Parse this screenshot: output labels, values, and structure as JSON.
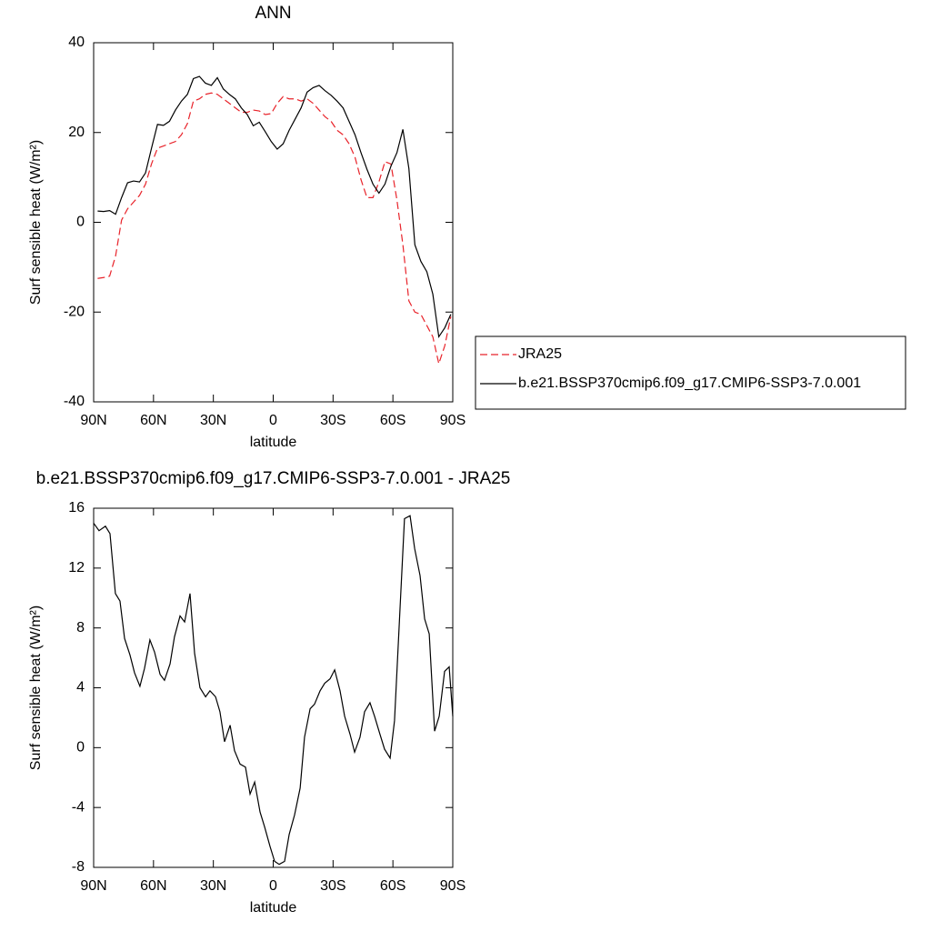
{
  "chart_data": [
    {
      "type": "line",
      "title": "ANN",
      "xlabel": "latitude",
      "ylabel": "Surf sensible heat (W/m²)",
      "x": [
        88,
        85,
        82,
        79,
        76,
        73,
        70,
        67,
        64,
        61,
        58,
        55,
        52,
        49,
        46,
        43,
        40,
        37,
        34,
        31,
        28,
        25,
        22,
        19,
        16,
        13,
        10,
        7,
        4,
        1,
        -2,
        -5,
        -8,
        -11,
        -14,
        -17,
        -20,
        -23,
        -26,
        -29,
        -32,
        -35,
        -38,
        -41,
        -44,
        -47,
        -50,
        -53,
        -56,
        -59,
        -62,
        -65,
        -68,
        -71,
        -74,
        -77,
        -80,
        -83,
        -86,
        -89
      ],
      "series": [
        {
          "name": "JRA25",
          "color": "#e8232a",
          "line_style": "dashed",
          "values": [
            -12.5,
            -12.3,
            -12,
            -7.5,
            0.5,
            3,
            4.5,
            6,
            8.5,
            13,
            16.5,
            17,
            17.5,
            18,
            19.5,
            22,
            27,
            27.5,
            28.5,
            28.8,
            28.5,
            27.5,
            26.5,
            25.5,
            24.5,
            24.5,
            25,
            24.8,
            24,
            24.2,
            26.5,
            28,
            27.5,
            27.5,
            27,
            27.5,
            26.5,
            25,
            23.5,
            22.5,
            20.5,
            19.5,
            17.5,
            14.5,
            9.5,
            5.5,
            5.5,
            9,
            13.5,
            13,
            5,
            -5,
            -17.5,
            -20,
            -20.5,
            -23,
            -25.5,
            -31.5,
            -27.5,
            -21
          ]
        },
        {
          "name": "b.e21.BSSP370cmip6.f09_g17.CMIP6-SSP3-7.0.001",
          "color": "#000000",
          "line_style": "solid",
          "values": [
            2.5,
            2.4,
            2.6,
            1.8,
            5.5,
            8.8,
            9.2,
            9,
            11,
            16.5,
            21.8,
            21.6,
            22.5,
            25,
            27,
            28.5,
            32,
            32.5,
            31,
            30.5,
            32.2,
            29.7,
            28.5,
            27.5,
            25.5,
            24,
            21.5,
            22.3,
            20.2,
            18,
            16.3,
            17.5,
            20.5,
            23,
            25.5,
            29,
            30,
            30.5,
            29.3,
            28.3,
            27,
            25.5,
            22.5,
            19.5,
            15.5,
            11.8,
            8.5,
            6.5,
            8.5,
            12.5,
            15.5,
            20.7,
            12,
            -5,
            -8.7,
            -11,
            -16,
            -25.5,
            -23.5,
            -20.5
          ]
        }
      ],
      "xlim": [
        90,
        -90
      ],
      "xticks": [
        {
          "value": 90,
          "label": "90N"
        },
        {
          "value": 60,
          "label": "60N"
        },
        {
          "value": 30,
          "label": "30N"
        },
        0,
        {
          "value": -30,
          "label": "30S"
        },
        {
          "value": -60,
          "label": "60S"
        },
        {
          "value": -90,
          "label": "90S"
        }
      ],
      "ylim": [
        -40,
        40
      ],
      "yticks": [
        -40,
        -20,
        0,
        20,
        40
      ],
      "legend": "outside-right"
    },
    {
      "type": "line",
      "title": "b.e21.BSSP370cmip6.f09_g17.CMIP6-SSP3-7.0.001 - JRA25",
      "xlabel": "latitude",
      "ylabel": "Surf sensible heat (W/m²)",
      "x": [
        90,
        87.3,
        84.1,
        81.8,
        79.1,
        76.8,
        74.5,
        71.8,
        69.5,
        66.8,
        64.5,
        61.8,
        59.5,
        56.7,
        54.5,
        51.7,
        49.5,
        46.7,
        44.4,
        41.7,
        39.4,
        36.7,
        33.9,
        31.7,
        28.9,
        26.7,
        24.4,
        21.6,
        19.4,
        16.6,
        13.9,
        11.6,
        9.3,
        6.6,
        4.3,
        1.6,
        -0.7,
        -3,
        -5.7,
        -8,
        -10.7,
        -13.5,
        -15.7,
        -18.5,
        -20.7,
        -23.5,
        -25.8,
        -28.5,
        -30.8,
        -33.5,
        -35.8,
        -38.5,
        -40.8,
        -43.5,
        -45.8,
        -48.5,
        -50.8,
        -53.5,
        -55.8,
        -58.6,
        -60.8,
        -63.6,
        -65.8,
        -68.6,
        -70.9,
        -73.6,
        -75.9,
        -78.2,
        -80.9,
        -83.2,
        -85.9,
        -88.2,
        -90
      ],
      "values": [
        15,
        14.5,
        14.8,
        14.3,
        10.3,
        9.8,
        7.3,
        6.2,
        5,
        4.1,
        5.3,
        7.2,
        6.4,
        4.9,
        4.5,
        5.6,
        7.4,
        8.8,
        8.4,
        10.3,
        6.3,
        4,
        3.4,
        3.8,
        3.4,
        2.4,
        0.4,
        1.5,
        -0.2,
        -1.1,
        -1.3,
        -3.1,
        -2.3,
        -4.3,
        -5.3,
        -6.6,
        -7.6,
        -7.8,
        -7.6,
        -5.8,
        -4.5,
        -2.7,
        0.7,
        2.6,
        2.9,
        3.8,
        4.3,
        4.6,
        5.2,
        3.8,
        2.1,
        0.9,
        -0.3,
        0.7,
        2.4,
        3,
        2.1,
        0.9,
        -0.1,
        -0.7,
        1.8,
        9.4,
        15.3,
        15.5,
        13.3,
        11.5,
        8.6,
        7.6,
        1.1,
        2.1,
        5.1,
        5.4,
        2.1
      ],
      "color": "#000000",
      "xlim": [
        90,
        -90
      ],
      "xticks": [
        {
          "value": 90,
          "label": "90N"
        },
        {
          "value": 60,
          "label": "60N"
        },
        {
          "value": 30,
          "label": "30N"
        },
        0,
        {
          "value": -30,
          "label": "30S"
        },
        {
          "value": -60,
          "label": "60S"
        },
        {
          "value": -90,
          "label": "90S"
        }
      ],
      "ylim": [
        -8,
        16
      ],
      "yticks": [
        -8,
        -4,
        0,
        4,
        8,
        12,
        16
      ]
    }
  ]
}
